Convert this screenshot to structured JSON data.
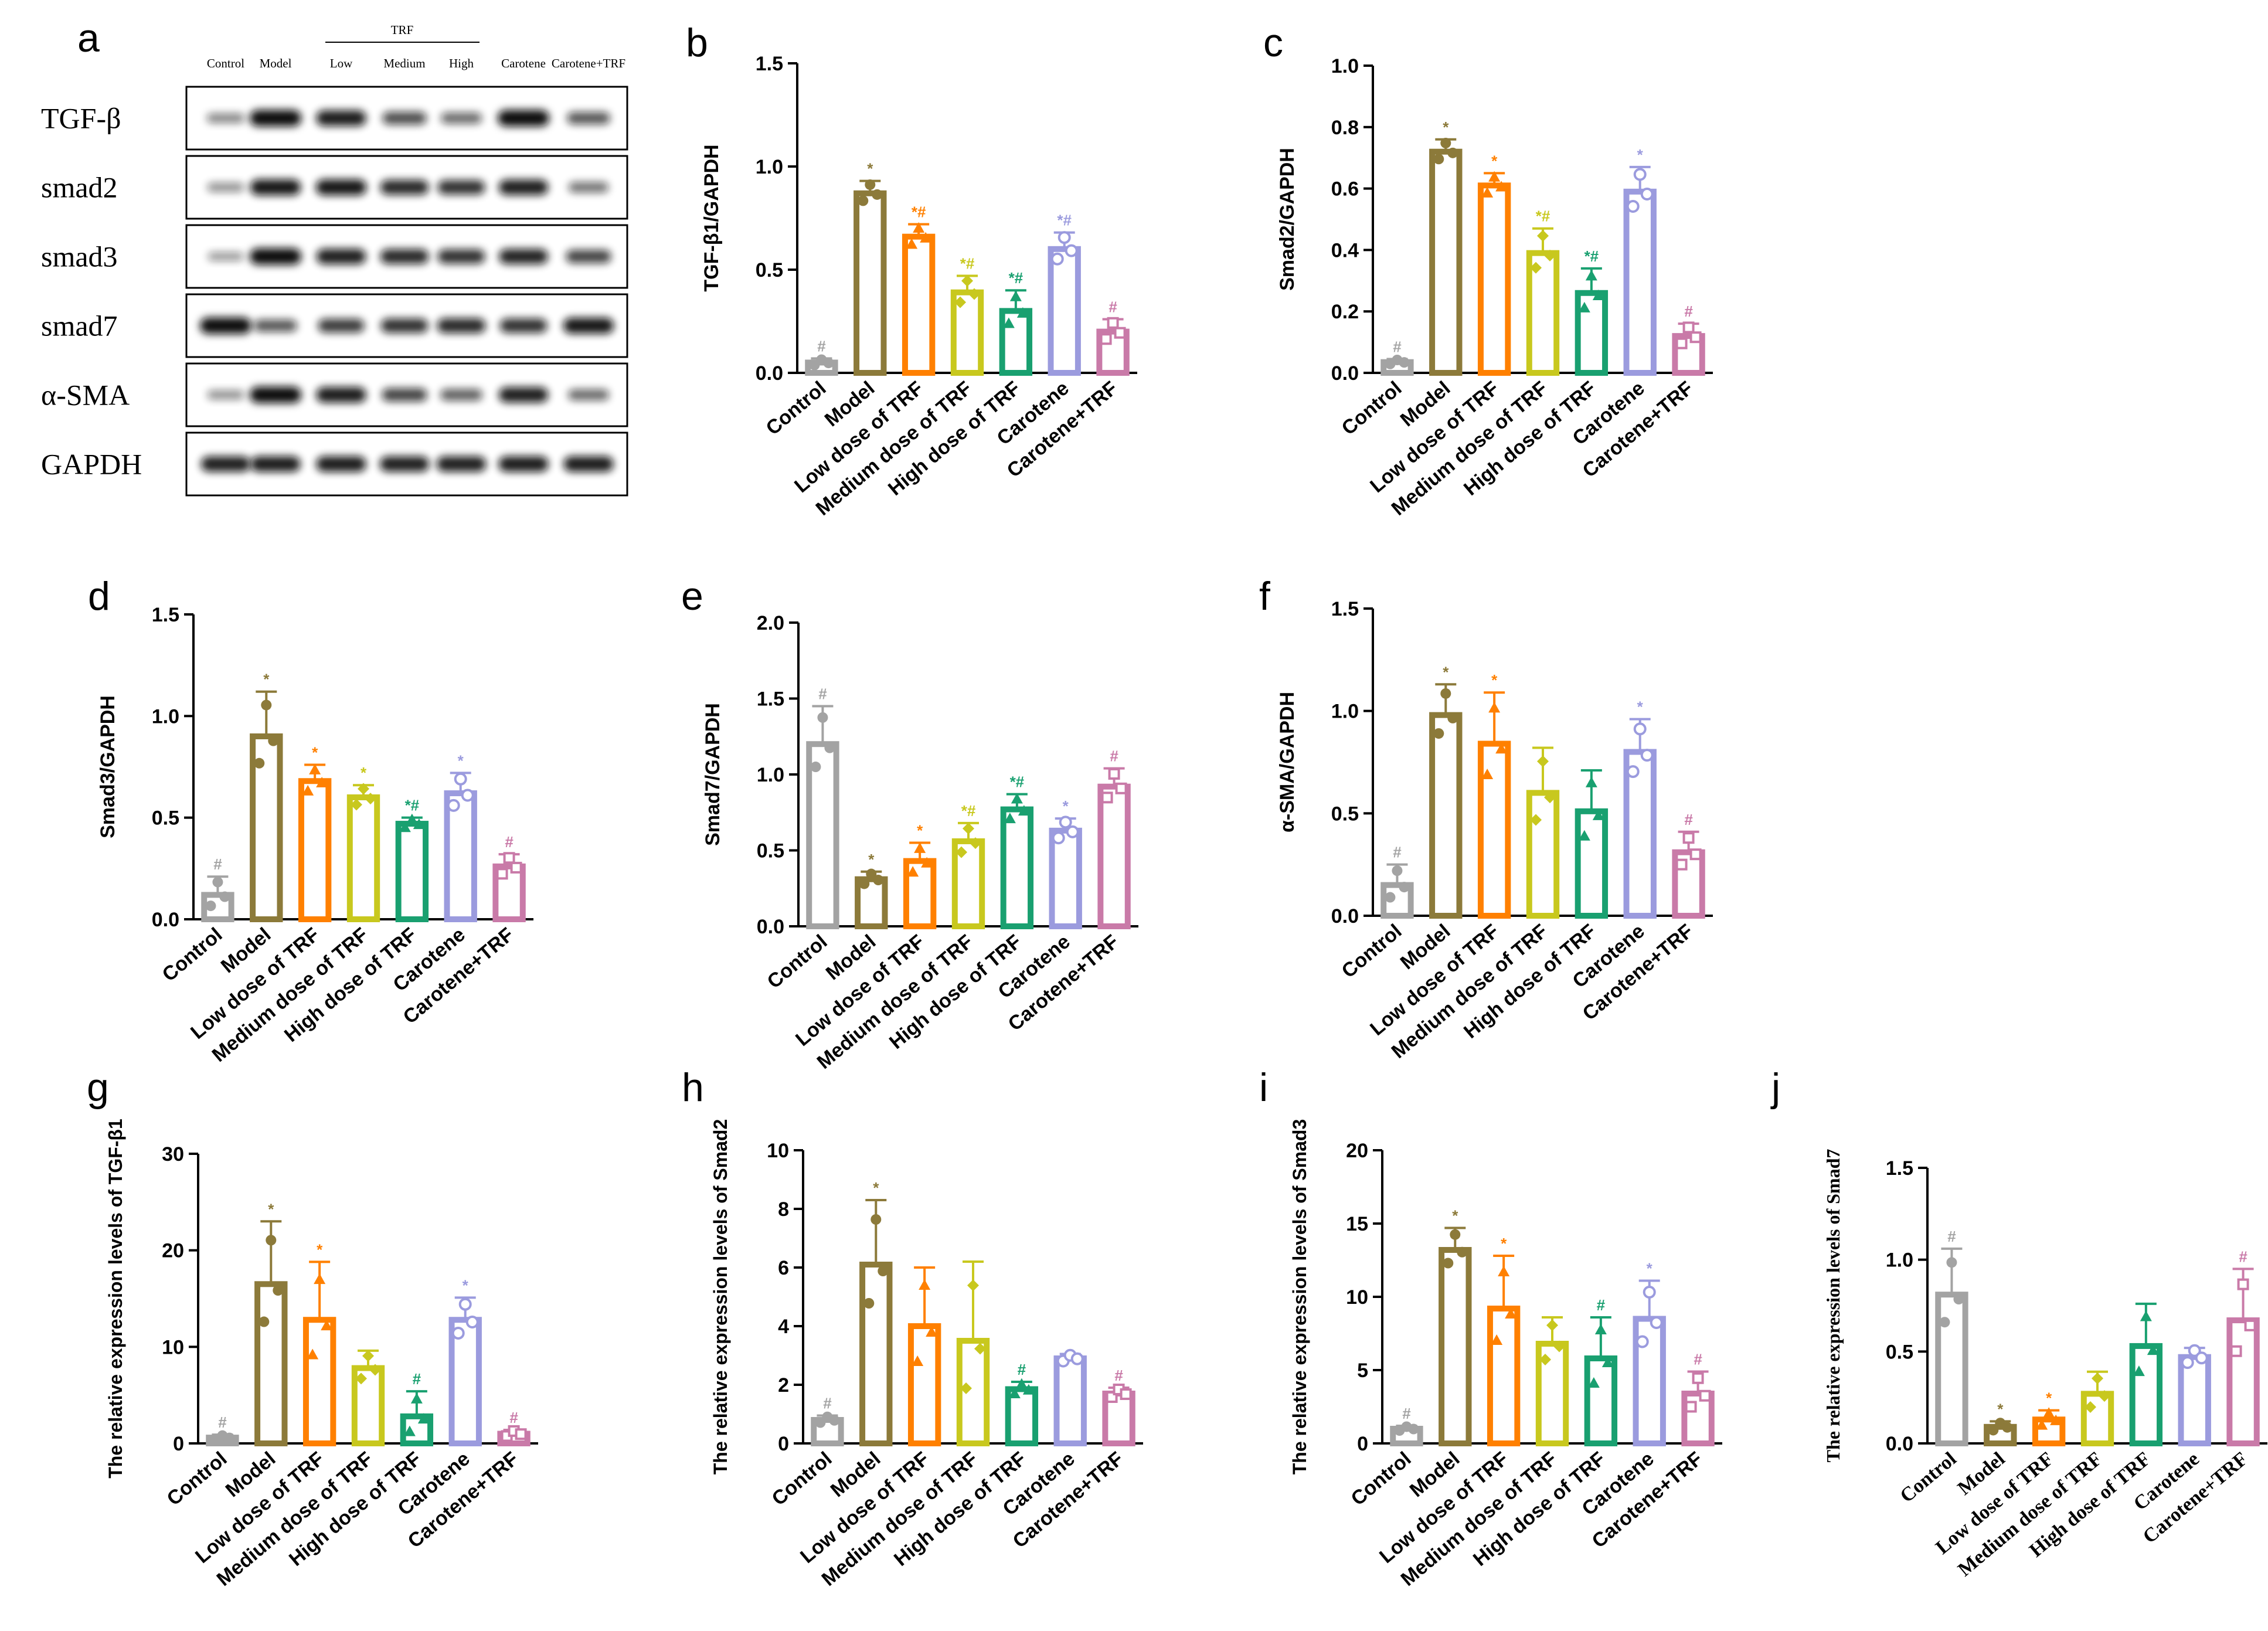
{
  "colors": [
    "#a3a3a3",
    "#8c7a3a",
    "#ff8000",
    "#c8c81e",
    "#19a070",
    "#9b9bde",
    "#c97aa8"
  ],
  "categories": [
    "Control",
    "Model",
    "Low dose of TRF",
    "Medium dose of TRF",
    "High dose of TRF",
    "Carotene",
    "Carotene+TRF"
  ],
  "blot": {
    "panel_letter": "a",
    "group_label": "TRF",
    "lane_labels": [
      "Control",
      "Model",
      "Low",
      "Medium",
      "High",
      "Carotene",
      "Carotene+TRF"
    ],
    "rows": [
      {
        "label": "TGF-β",
        "intensity": [
          0.35,
          1.0,
          0.92,
          0.65,
          0.5,
          1.0,
          0.6
        ]
      },
      {
        "label": "smad2",
        "intensity": [
          0.3,
          0.95,
          0.95,
          0.85,
          0.8,
          0.9,
          0.45
        ]
      },
      {
        "label": "smad3",
        "intensity": [
          0.25,
          1.0,
          0.9,
          0.85,
          0.8,
          0.88,
          0.7
        ]
      },
      {
        "label": "smad7",
        "intensity": [
          1.0,
          0.6,
          0.75,
          0.8,
          0.85,
          0.8,
          0.95
        ]
      },
      {
        "label": "α-SMA",
        "intensity": [
          0.3,
          1.0,
          0.92,
          0.7,
          0.55,
          0.9,
          0.5
        ]
      },
      {
        "label": "GAPDH",
        "intensity": [
          0.9,
          0.92,
          0.92,
          0.9,
          0.9,
          0.92,
          0.92
        ]
      }
    ]
  },
  "chart_data": [
    {
      "panel": "b",
      "type": "bar",
      "ylabel": "TGF-β1/GAPDH",
      "ylim": [
        0,
        1.5
      ],
      "yticks": [
        "0.0",
        "0.5",
        "1.0",
        "1.5"
      ],
      "yticks_v": [
        0,
        0.5,
        1,
        1.5
      ],
      "values": [
        0.05,
        0.87,
        0.66,
        0.39,
        0.3,
        0.6,
        0.2
      ],
      "errors": [
        0.02,
        0.06,
        0.06,
        0.08,
        0.1,
        0.08,
        0.06
      ],
      "annotations": [
        "#",
        "*",
        "*#",
        "*#",
        "*#",
        "*#",
        "#"
      ]
    },
    {
      "panel": "c",
      "type": "bar",
      "ylabel": "Smad2/GAPDH",
      "ylim": [
        0,
        1.0
      ],
      "yticks": [
        "0.0",
        "0.2",
        "0.4",
        "0.6",
        "0.8",
        "1.0"
      ],
      "yticks_v": [
        0,
        0.2,
        0.4,
        0.6,
        0.8,
        1.0
      ],
      "values": [
        0.035,
        0.72,
        0.61,
        0.39,
        0.26,
        0.59,
        0.12
      ],
      "errors": [
        0.01,
        0.04,
        0.04,
        0.08,
        0.08,
        0.08,
        0.04
      ],
      "annotations": [
        "#",
        "*",
        "*",
        "*#",
        "*#",
        "*",
        "#"
      ]
    },
    {
      "panel": "d",
      "type": "bar",
      "ylabel": "Smad3/GAPDH",
      "ylim": [
        0,
        1.5
      ],
      "yticks": [
        "0.0",
        "0.5",
        "1.0",
        "1.5"
      ],
      "yticks_v": [
        0,
        0.5,
        1,
        1.5
      ],
      "values": [
        0.12,
        0.9,
        0.68,
        0.6,
        0.47,
        0.62,
        0.26
      ],
      "errors": [
        0.09,
        0.22,
        0.08,
        0.06,
        0.03,
        0.1,
        0.06
      ],
      "annotations": [
        "#",
        "*",
        "*",
        "*",
        "*#",
        "*",
        "#"
      ]
    },
    {
      "panel": "e",
      "type": "bar",
      "ylabel": "Smad7/GAPDH",
      "ylim": [
        0,
        2.0
      ],
      "yticks": [
        "0.0",
        "0.5",
        "1.0",
        "1.5",
        "2.0"
      ],
      "yticks_v": [
        0,
        0.5,
        1,
        1.5,
        2
      ],
      "values": [
        1.2,
        0.31,
        0.43,
        0.56,
        0.77,
        0.63,
        0.92
      ],
      "errors": [
        0.25,
        0.05,
        0.12,
        0.12,
        0.1,
        0.08,
        0.12
      ],
      "annotations": [
        "#",
        "*",
        "*",
        "*#",
        "*#",
        "*",
        "#"
      ]
    },
    {
      "panel": "f",
      "type": "bar",
      "ylabel": "α-SMA/GAPDH",
      "ylim": [
        0,
        1.5
      ],
      "yticks": [
        "0.0",
        "0.5",
        "1.0",
        "1.5"
      ],
      "yticks_v": [
        0,
        0.5,
        1,
        1.5
      ],
      "values": [
        0.15,
        0.98,
        0.84,
        0.6,
        0.51,
        0.8,
        0.31
      ],
      "errors": [
        0.1,
        0.15,
        0.25,
        0.22,
        0.2,
        0.16,
        0.1
      ],
      "annotations": [
        "#",
        "*",
        "*",
        "",
        "",
        "*",
        "#"
      ]
    },
    {
      "panel": "g",
      "type": "bar",
      "ylabel": "The relative expression levels of TGF-β1",
      "ylim": [
        0,
        30
      ],
      "yticks": [
        "0",
        "10",
        "20",
        "30"
      ],
      "yticks_v": [
        0,
        10,
        20,
        30
      ],
      "values": [
        0.6,
        16.5,
        12.8,
        7.8,
        2.8,
        12.8,
        1.0
      ],
      "errors": [
        0.3,
        6.5,
        6.0,
        1.8,
        2.6,
        2.3,
        0.4
      ],
      "annotations": [
        "#",
        "*",
        "*",
        "",
        "#",
        "*",
        "#"
      ]
    },
    {
      "panel": "h",
      "type": "bar",
      "ylabel": "The relative expression levels of Smad2",
      "ylim": [
        0,
        10
      ],
      "yticks": [
        "0",
        "2",
        "4",
        "6",
        "8",
        "10"
      ],
      "yticks_v": [
        0,
        2,
        4,
        6,
        8,
        10
      ],
      "values": [
        0.8,
        6.1,
        4.0,
        3.5,
        1.85,
        2.9,
        1.7
      ],
      "errors": [
        0.15,
        2.2,
        2.0,
        2.7,
        0.25,
        0.15,
        0.2
      ],
      "annotations": [
        "#",
        "*",
        "",
        "",
        "#",
        "",
        "#"
      ]
    },
    {
      "panel": "i",
      "type": "bar",
      "ylabel": "The relative expression levels of Smad3",
      "ylim": [
        0,
        20
      ],
      "yticks": [
        "0",
        "5",
        "10",
        "15",
        "20"
      ],
      "yticks_v": [
        0,
        5,
        10,
        15,
        20
      ],
      "values": [
        1.0,
        13.2,
        9.2,
        6.8,
        5.8,
        8.5,
        3.4
      ],
      "errors": [
        0.2,
        1.5,
        3.6,
        1.8,
        2.8,
        2.6,
        1.5
      ],
      "annotations": [
        "#",
        "*",
        "*",
        "",
        "#",
        "*",
        "#"
      ]
    },
    {
      "panel": "j",
      "type": "bar",
      "ylabel": "The relative expression levels of Smad7",
      "ylim": [
        0,
        1.5
      ],
      "yticks": [
        "0.0",
        "0.5",
        "1.0",
        "1.5"
      ],
      "yticks_v": [
        0,
        0.5,
        1,
        1.5
      ],
      "values": [
        0.81,
        0.09,
        0.13,
        0.27,
        0.53,
        0.47,
        0.67
      ],
      "errors": [
        0.25,
        0.03,
        0.05,
        0.12,
        0.23,
        0.05,
        0.28
      ],
      "annotations": [
        "#",
        "*",
        "*",
        "",
        "",
        "",
        "#"
      ]
    }
  ]
}
